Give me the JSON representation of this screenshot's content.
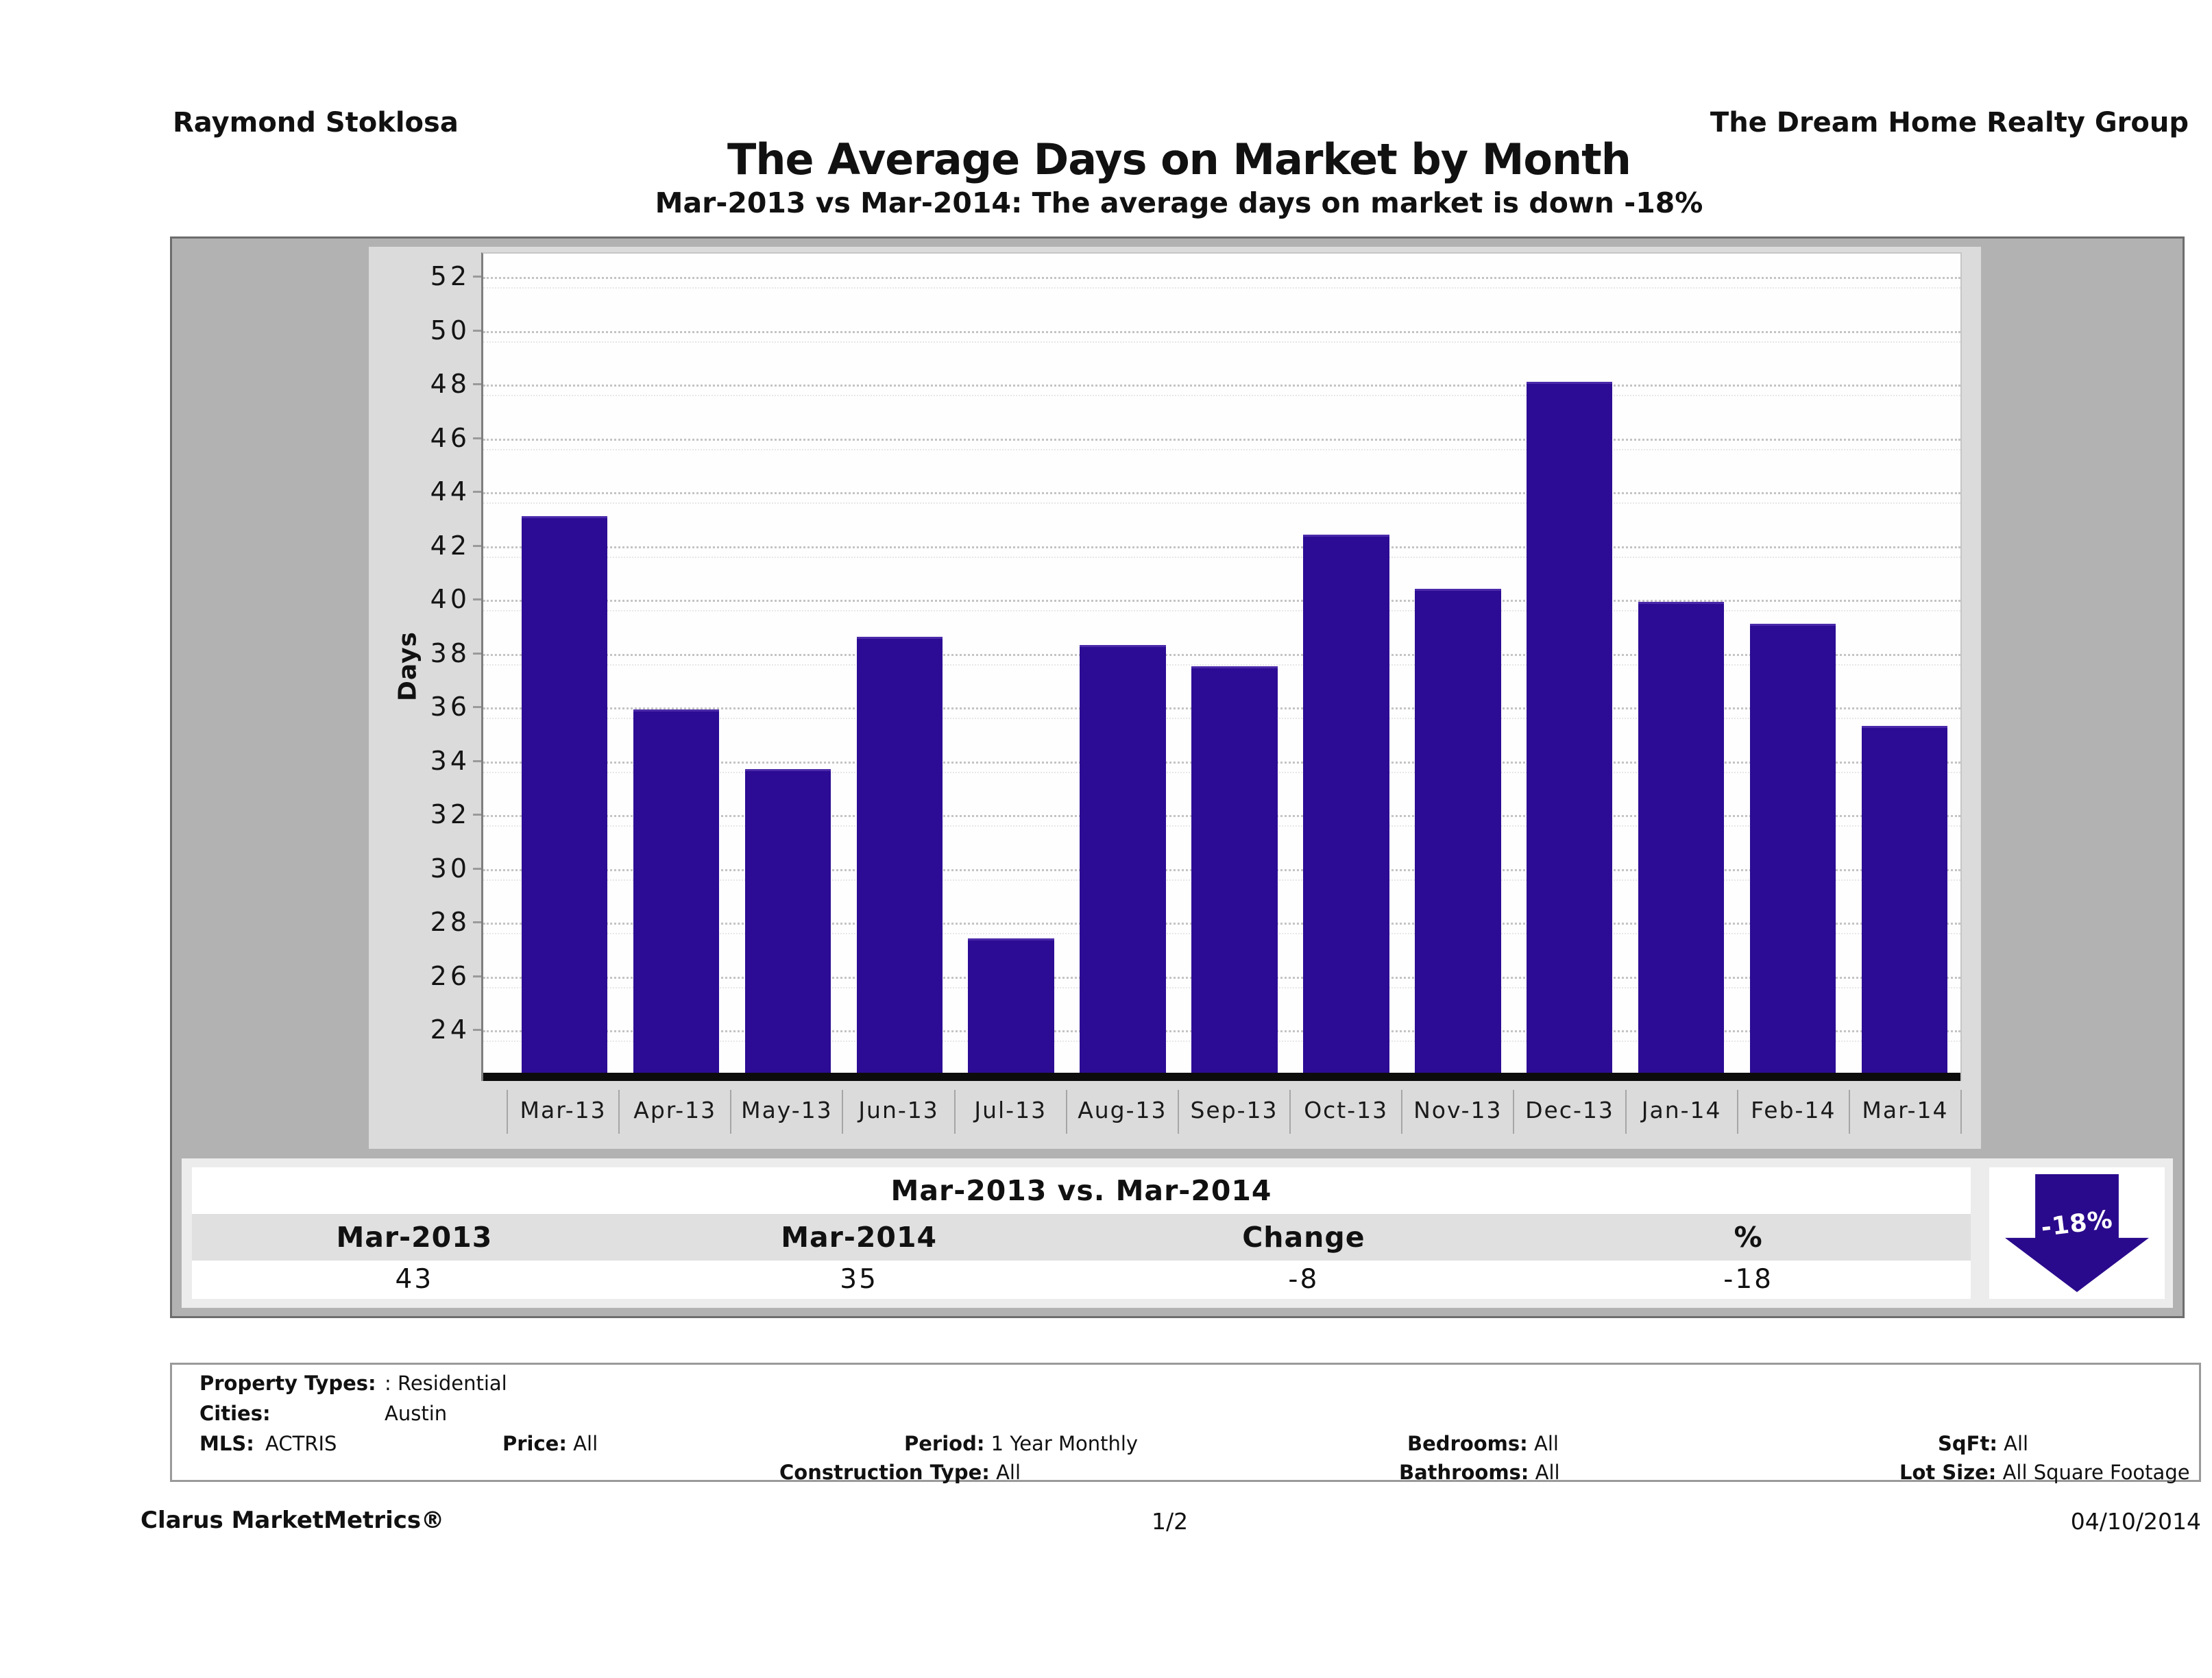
{
  "header": {
    "agent": "Raymond Stoklosa",
    "company": "The Dream Home Realty Group"
  },
  "title": "The Average Days on Market by Month",
  "subtitle": "Mar-2013 vs Mar-2014: The average days on market is down -18%",
  "chart_data": {
    "type": "bar",
    "title": "The Average Days on Market by Month",
    "categories": [
      "Mar-13",
      "Apr-13",
      "May-13",
      "Jun-13",
      "Jul-13",
      "Aug-13",
      "Sep-13",
      "Oct-13",
      "Nov-13",
      "Dec-13",
      "Jan-14",
      "Feb-14",
      "Mar-14"
    ],
    "values": [
      43.1,
      35.9,
      33.7,
      38.6,
      27.4,
      38.3,
      37.5,
      42.4,
      40.4,
      48.1,
      39.9,
      39.1,
      35.3
    ],
    "xlabel": "",
    "ylabel": "Days",
    "yticks": [
      24,
      26,
      28,
      30,
      32,
      34,
      36,
      38,
      40,
      42,
      44,
      46,
      48,
      50,
      52
    ],
    "ylim": [
      22.4,
      52.7
    ],
    "grid": true,
    "legend_position": "none",
    "bar_color": "#2c0c94"
  },
  "comparison": {
    "title": "Mar-2013 vs. Mar-2014",
    "columns": [
      "Mar-2013",
      "Mar-2014",
      "Change",
      "%"
    ],
    "values": [
      "43",
      "35",
      "-8",
      "-18"
    ],
    "arrow_label": "-18%"
  },
  "params": {
    "property_types_label": "Property Types:",
    "property_types_value": ": Residential",
    "cities_label": "Cities:",
    "cities_value": "Austin",
    "mls_label": "MLS:",
    "mls_value": "ACTRIS",
    "price_label": "Price:",
    "price_value": "All",
    "period_label": "Period:",
    "period_value": "1 Year Monthly",
    "bedrooms_label": "Bedrooms:",
    "bedrooms_value": "All",
    "sqft_label": "SqFt:",
    "sqft_value": "All",
    "construction_label": "Construction Type:",
    "construction_value": "All",
    "bathrooms_label": "Bathrooms:",
    "bathrooms_value": "All",
    "lotsize_label": "Lot Size:",
    "lotsize_value": "All Square Footage"
  },
  "footer": {
    "brand": "Clarus MarketMetrics®",
    "page": "1/2",
    "date": "04/10/2014"
  },
  "colors": {
    "accent": "#2c0c94",
    "arrow": "#2a0a8c",
    "band_bg": "#b2b2b2",
    "panel_bg": "#dbdbdb"
  }
}
